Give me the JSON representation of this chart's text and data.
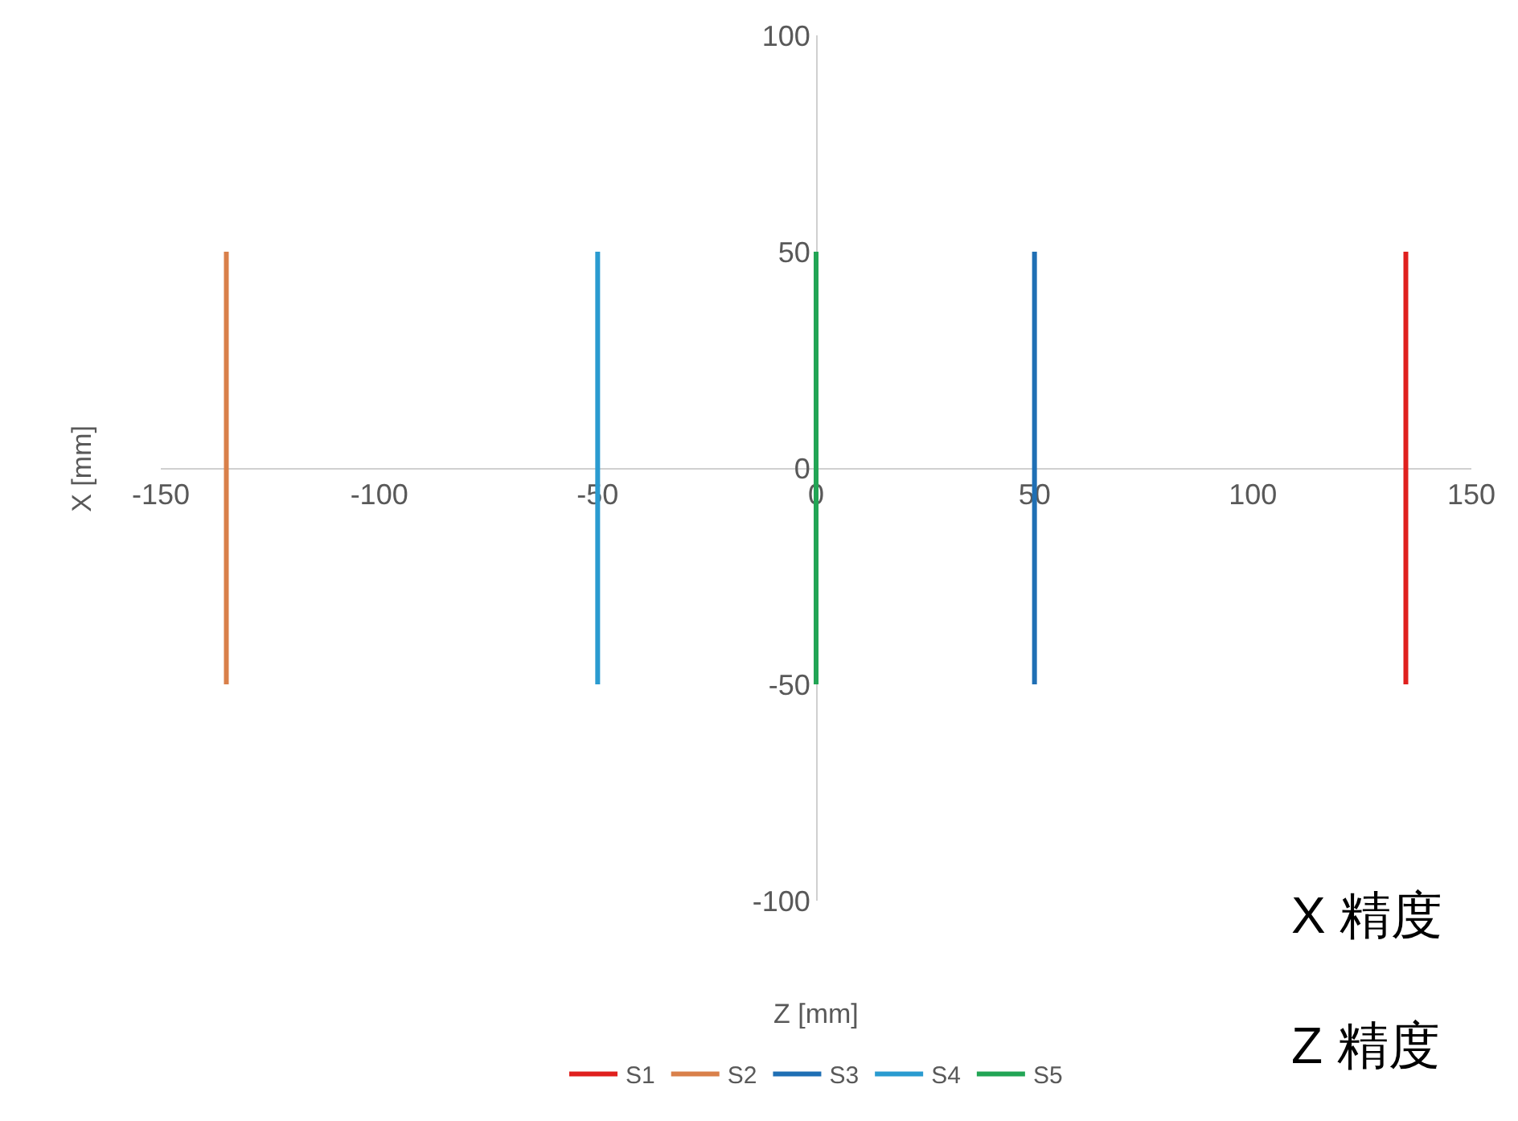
{
  "chart_data": {
    "type": "line",
    "xlabel": "Z [mm]",
    "ylabel": "X [mm]",
    "xlim": [
      -150,
      150
    ],
    "xticks": [
      -150,
      -100,
      -50,
      0,
      50,
      100,
      150
    ],
    "ylim": [
      -100,
      100
    ],
    "yticks": [
      -100,
      -50,
      0,
      50,
      100
    ],
    "grid": false,
    "legend": "bottom",
    "series": [
      {
        "name": "S1",
        "color": "#e0201e",
        "x": [
          135,
          135
        ],
        "values": [
          -50,
          50
        ]
      },
      {
        "name": "S2",
        "color": "#d9804a",
        "x": [
          -135,
          -135
        ],
        "values": [
          -50,
          50
        ]
      },
      {
        "name": "S3",
        "color": "#1f6fb4",
        "x": [
          50,
          50
        ],
        "values": [
          -50,
          50
        ]
      },
      {
        "name": "S4",
        "color": "#2a9bd0",
        "x": [
          -50,
          -50
        ],
        "values": [
          -50,
          50
        ]
      },
      {
        "name": "S5",
        "color": "#22a555",
        "x": [
          0,
          0
        ],
        "values": [
          -50,
          50
        ]
      }
    ],
    "annotations": [
      "X 精度",
      "Z 精度"
    ]
  }
}
